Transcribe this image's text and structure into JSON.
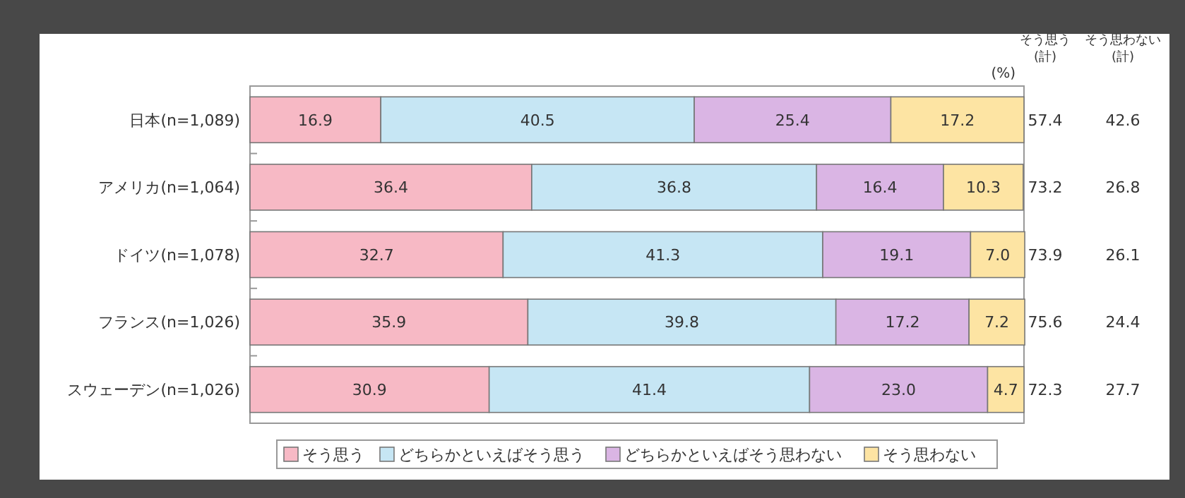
{
  "chart_data": {
    "type": "bar",
    "orientation": "horizontal",
    "stacked": true,
    "legend": "bottom",
    "tick_labels": "y",
    "xlim": [
      0,
      100
    ],
    "categories": [
      "日本(n=1,089)",
      "アメリカ(n=1,064)",
      "ドイツ(n=1,078)",
      "フランス(n=1,026)",
      "スウェーデン(n=1,026)"
    ],
    "series": [
      {
        "name": "そう思う",
        "color": "#f7b9c5",
        "values": [
          16.9,
          36.4,
          32.7,
          35.9,
          30.9
        ],
        "value_labels": [
          "16.9",
          "36.4",
          "32.7",
          "35.9",
          "30.9"
        ]
      },
      {
        "name": "どちらかといえばそう思う",
        "color": "#c6e6f4",
        "values": [
          40.5,
          36.8,
          41.3,
          39.8,
          41.4
        ],
        "value_labels": [
          "40.5",
          "36.8",
          "41.3",
          "39.8",
          "41.4"
        ]
      },
      {
        "name": "どちらかといえばそう思わない",
        "color": "#dab5e4",
        "values": [
          25.4,
          16.4,
          19.1,
          17.2,
          23.0
        ],
        "value_labels": [
          "25.4",
          "16.4",
          "19.1",
          "17.2",
          "23.0"
        ]
      },
      {
        "name": "そう思わない",
        "color": "#fde4a3",
        "values": [
          17.2,
          10.3,
          7.0,
          7.2,
          4.7
        ],
        "value_labels": [
          "17.2",
          "10.3",
          "7.0",
          "7.2",
          "4.7"
        ]
      }
    ],
    "annotations": [
      "(%)",
      "そう思う (計)",
      "そう思わない (計)",
      "57.4",
      "42.6",
      "73.2",
      "26.8",
      "73.9",
      "26.1",
      "75.6",
      "24.4",
      "72.3",
      "27.7"
    ]
  }
}
